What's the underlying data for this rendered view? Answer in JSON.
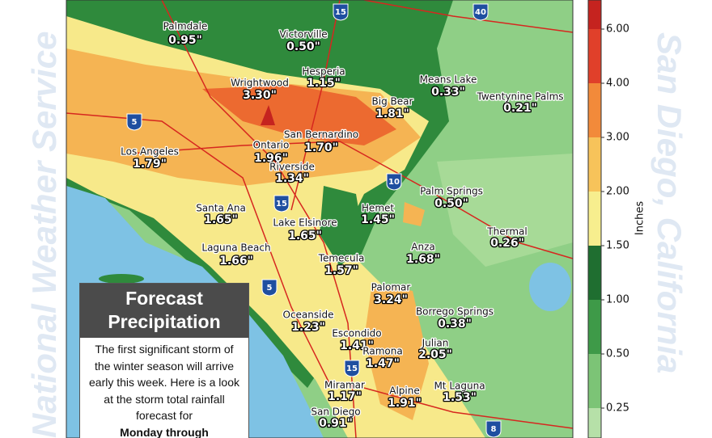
{
  "side_left": "National Weather Service",
  "side_right": "San Diego, California",
  "locations": [
    {
      "name": "Palmdale",
      "amount": "0.95\""
    },
    {
      "name": "Victorville",
      "amount": "0.50\""
    },
    {
      "name": "Hesperia",
      "amount": "1.15\""
    },
    {
      "name": "Wrightwood",
      "amount": "3.30\""
    },
    {
      "name": "Means Lake",
      "amount": "0.33\""
    },
    {
      "name": "Twentynine Palms",
      "amount": "0.21\""
    },
    {
      "name": "Big Bear",
      "amount": "1.81\""
    },
    {
      "name": "San Bernardino",
      "amount": "1.70\""
    },
    {
      "name": "Ontario",
      "amount": "1.96\""
    },
    {
      "name": "Los Angeles",
      "amount": "1.79\""
    },
    {
      "name": "Riverside",
      "amount": "1.34\""
    },
    {
      "name": "Palm Springs",
      "amount": "0.50\""
    },
    {
      "name": "Santa Ana",
      "amount": "1.65\""
    },
    {
      "name": "Hemet",
      "amount": "1.45\""
    },
    {
      "name": "Lake Elsinore",
      "amount": "1.65\""
    },
    {
      "name": "Thermal",
      "amount": "0.26\""
    },
    {
      "name": "Anza",
      "amount": "1.68\""
    },
    {
      "name": "Laguna Beach",
      "amount": "1.66\""
    },
    {
      "name": "Temecula",
      "amount": "1.57\""
    },
    {
      "name": "Palomar",
      "amount": "3.24\""
    },
    {
      "name": "Oceanside",
      "amount": "1.23\""
    },
    {
      "name": "Borrego Springs",
      "amount": "0.38\""
    },
    {
      "name": "Escondido",
      "amount": "1.41\""
    },
    {
      "name": "Ramona",
      "amount": "1.47\""
    },
    {
      "name": "Julian",
      "amount": "2.05\""
    },
    {
      "name": "Miramar",
      "amount": "1.17\""
    },
    {
      "name": "Mt Laguna",
      "amount": "1.53\""
    },
    {
      "name": "Alpine",
      "amount": "1.91\""
    },
    {
      "name": "San Diego",
      "amount": "0.91\""
    }
  ],
  "highways": [
    "15",
    "40",
    "5",
    "10",
    "15",
    "5",
    "15",
    "8"
  ],
  "legend": {
    "label": "Inches",
    "ticks": [
      "6.00",
      "4.00",
      "3.00",
      "2.00",
      "1.50",
      "1.00",
      "0.50",
      "0.25"
    ]
  },
  "box": {
    "title": [
      "Forecast",
      "Precipitation"
    ],
    "text": "The first significant storm of the winter season will arrive early this week. Here is a look at the storm total rainfall forecast for",
    "bold": "Monday through"
  }
}
